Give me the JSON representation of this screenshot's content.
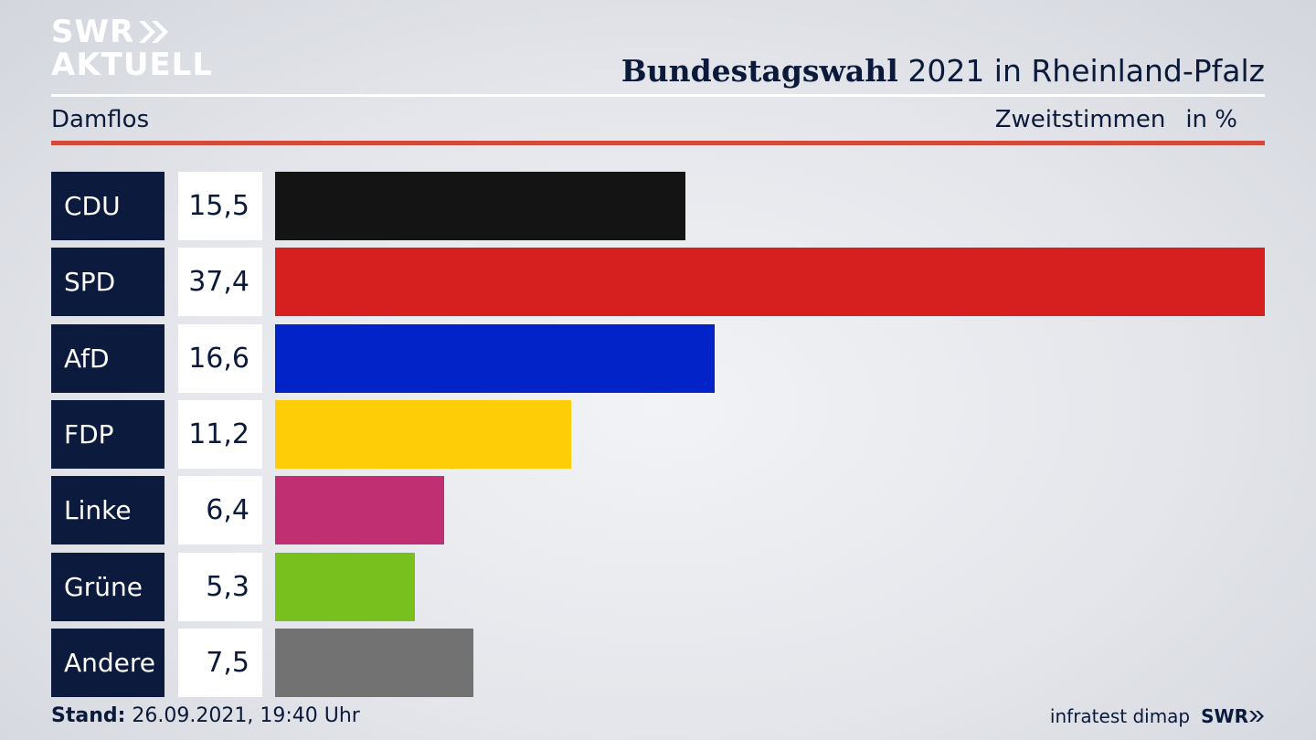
{
  "branding": {
    "logo_line1": "SWR",
    "logo_line2": "AKTUELL",
    "footer_logo": "SWR"
  },
  "header": {
    "title_bold": "Bundestagswahl",
    "title_rest": "2021 in Rheinland-Pfalz",
    "subtitle": "Damflos",
    "measure": "Zweitstimmen",
    "unit": "in %"
  },
  "footer": {
    "stand_label": "Stand:",
    "stand_value": "26.09.2021, 19:40 Uhr",
    "source": "infratest dimap"
  },
  "chart_data": {
    "type": "bar",
    "orientation": "horizontal",
    "title": "Bundestagswahl 2021 in Rheinland-Pfalz",
    "categories": [
      "CDU",
      "SPD",
      "AfD",
      "FDP",
      "Linke",
      "Grüne",
      "Andere"
    ],
    "values": [
      15.5,
      37.4,
      16.6,
      11.2,
      6.4,
      5.3,
      7.5
    ],
    "value_labels": [
      "15,5",
      "37,4",
      "16,6",
      "11,2",
      "6,4",
      "5,3",
      "7,5"
    ],
    "colors": [
      "#141414",
      "#d62020",
      "#0123c8",
      "#ffcc08",
      "#bf2f72",
      "#77c01d",
      "#727272"
    ],
    "xlim": [
      0,
      37.4
    ]
  }
}
